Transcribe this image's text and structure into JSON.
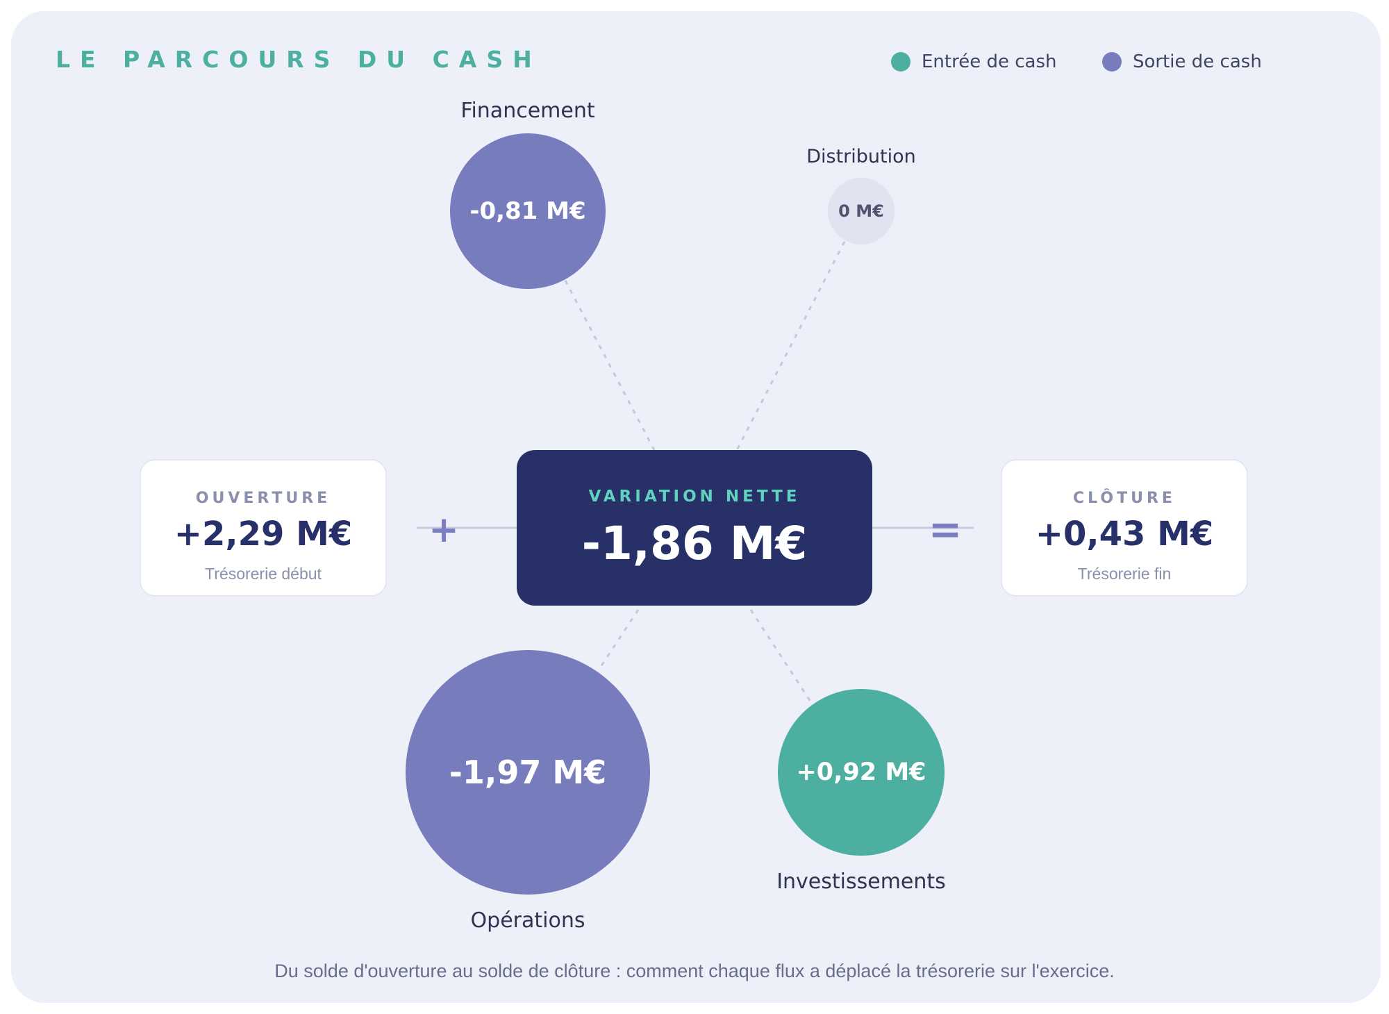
{
  "title": "LE PARCOURS DU CASH",
  "legend": {
    "inflow": {
      "label": "Entrée de cash",
      "color": "#4caf9f"
    },
    "outflow": {
      "label": "Sortie de cash",
      "color": "#767cbc"
    }
  },
  "flows": {
    "financement": {
      "label": "Financement",
      "value": "-0,81 M€",
      "amount_meur": -0.81,
      "kind": "outflow"
    },
    "distribution": {
      "label": "Distribution",
      "value": "0 M€",
      "amount_meur": 0,
      "kind": "neutral"
    },
    "operations": {
      "label": "Opérations",
      "value": "-1,97 M€",
      "amount_meur": -1.97,
      "kind": "outflow"
    },
    "investissements": {
      "label": "Investissements",
      "value": "+0,92 M€",
      "amount_meur": 0.92,
      "kind": "inflow"
    }
  },
  "opening": {
    "caption": "OUVERTURE",
    "value": "+2,29 M€",
    "sub": "Trésorerie début"
  },
  "net_change": {
    "caption": "VARIATION NETTE",
    "value": "-1,86 M€"
  },
  "closing": {
    "caption": "CLÔTURE",
    "value": "+0,43 M€",
    "sub": "Trésorerie fin"
  },
  "operators": {
    "plus": "+",
    "equals": "="
  },
  "footer": "Du solde d'ouverture au solde de clôture : comment chaque flux a déplacé la trésorerie sur l'exercice.",
  "colors": {
    "inflow": "#4caf9f",
    "outflow": "#767cbc",
    "neutral": "#e1e3f0",
    "center": "#273168",
    "title": "#4caf9f"
  }
}
